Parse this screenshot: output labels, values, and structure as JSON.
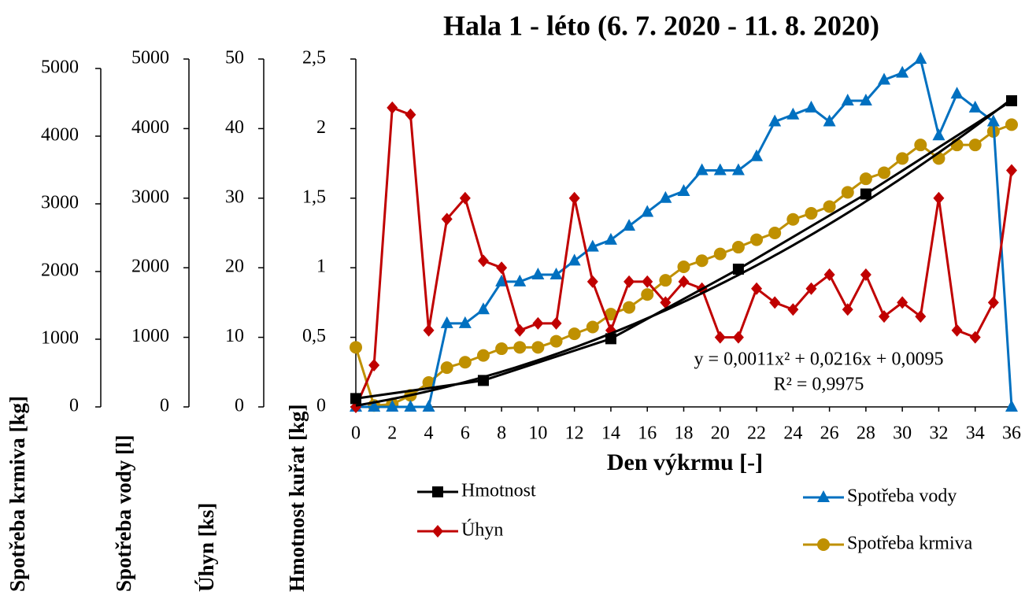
{
  "chart_data": {
    "type": "line",
    "title": "Hala 1 - léto (6. 7. 2020 - 11. 8. 2020)",
    "xlabel": "Den výkrmu [-]",
    "x": [
      0,
      1,
      2,
      3,
      4,
      5,
      6,
      7,
      8,
      9,
      10,
      11,
      12,
      13,
      14,
      15,
      16,
      17,
      18,
      19,
      20,
      21,
      22,
      23,
      24,
      25,
      26,
      27,
      28,
      29,
      30,
      31,
      32,
      33,
      34,
      35,
      36
    ],
    "xlim": [
      0,
      36
    ],
    "xticks": [
      0,
      2,
      4,
      6,
      8,
      10,
      12,
      14,
      16,
      18,
      20,
      22,
      24,
      26,
      28,
      30,
      32,
      34,
      36
    ],
    "ylabel": "Hmotnost kuřat [kg]",
    "ylim": [
      0,
      2.5
    ],
    "yticks": [
      0,
      {
        "value": 0.5,
        "label": "0,5"
      },
      1,
      {
        "value": 1.5,
        "label": "1,5"
      },
      2,
      {
        "value": 2.5,
        "label": "2,5"
      }
    ],
    "y2label": "Úhyn [ks]",
    "y2lim": [
      0,
      50
    ],
    "y2ticks": [
      0,
      10,
      20,
      30,
      40,
      50
    ],
    "y3label": "Spotřeba vody [l]",
    "y3lim": [
      0,
      5000
    ],
    "y3ticks": [
      0,
      1000,
      2000,
      3000,
      4000,
      5000
    ],
    "y4label": "Spotřeba krmiva [kg]",
    "y4lim": [
      0,
      5000
    ],
    "y4ticks": [
      0,
      1000,
      2000,
      3000,
      4000,
      5000
    ],
    "series": [
      {
        "name": "Spotřeba krmiva",
        "color": "#bf9000",
        "marker": "circle",
        "axis": "y4",
        "values": [
          880,
          20,
          40,
          170,
          360,
          580,
          660,
          760,
          860,
          880,
          880,
          970,
          1080,
          1180,
          1370,
          1470,
          1660,
          1870,
          2070,
          2160,
          2260,
          2360,
          2470,
          2570,
          2770,
          2860,
          2960,
          3170,
          3370,
          3460,
          3670,
          3870,
          3670,
          3870,
          3870,
          4070,
          4170
        ]
      },
      {
        "name": "Spotřeba vody",
        "color": "#0070c0",
        "marker": "triangle",
        "axis": "y3",
        "values": [
          0,
          0,
          0,
          0,
          0,
          1200,
          1200,
          1400,
          1800,
          1800,
          1900,
          1900,
          2100,
          2300,
          2400,
          2600,
          2800,
          3000,
          3100,
          3400,
          3400,
          3400,
          3600,
          4100,
          4200,
          4300,
          4100,
          4400,
          4400,
          4700,
          4800,
          5000,
          3900,
          4500,
          4300,
          4100,
          0
        ]
      },
      {
        "name": "Úhyn",
        "color": "#c00000",
        "marker": "diamond",
        "axis": "y2",
        "values": [
          0,
          6,
          43,
          42,
          11,
          27,
          30,
          21,
          20,
          11,
          12,
          12,
          30,
          18,
          11,
          18,
          18,
          15,
          18,
          17,
          10,
          10,
          17,
          15,
          14,
          17,
          19,
          14,
          19,
          13,
          15,
          13,
          30,
          11,
          10,
          15,
          34
        ]
      },
      {
        "name": "Hmotnost",
        "color": "#000000",
        "marker": "square",
        "axis": "y",
        "x": [
          0,
          7,
          14,
          21,
          28,
          36
        ],
        "values": [
          0.06,
          0.19,
          0.49,
          0.99,
          1.53,
          2.2
        ]
      }
    ],
    "trendline": {
      "coefficients": [
        0.0011,
        0.0216,
        0.0095
      ],
      "label": "y = 0,0011x² + 0,0216x + 0,0095",
      "r2_label": "R² = 0,9975"
    }
  }
}
